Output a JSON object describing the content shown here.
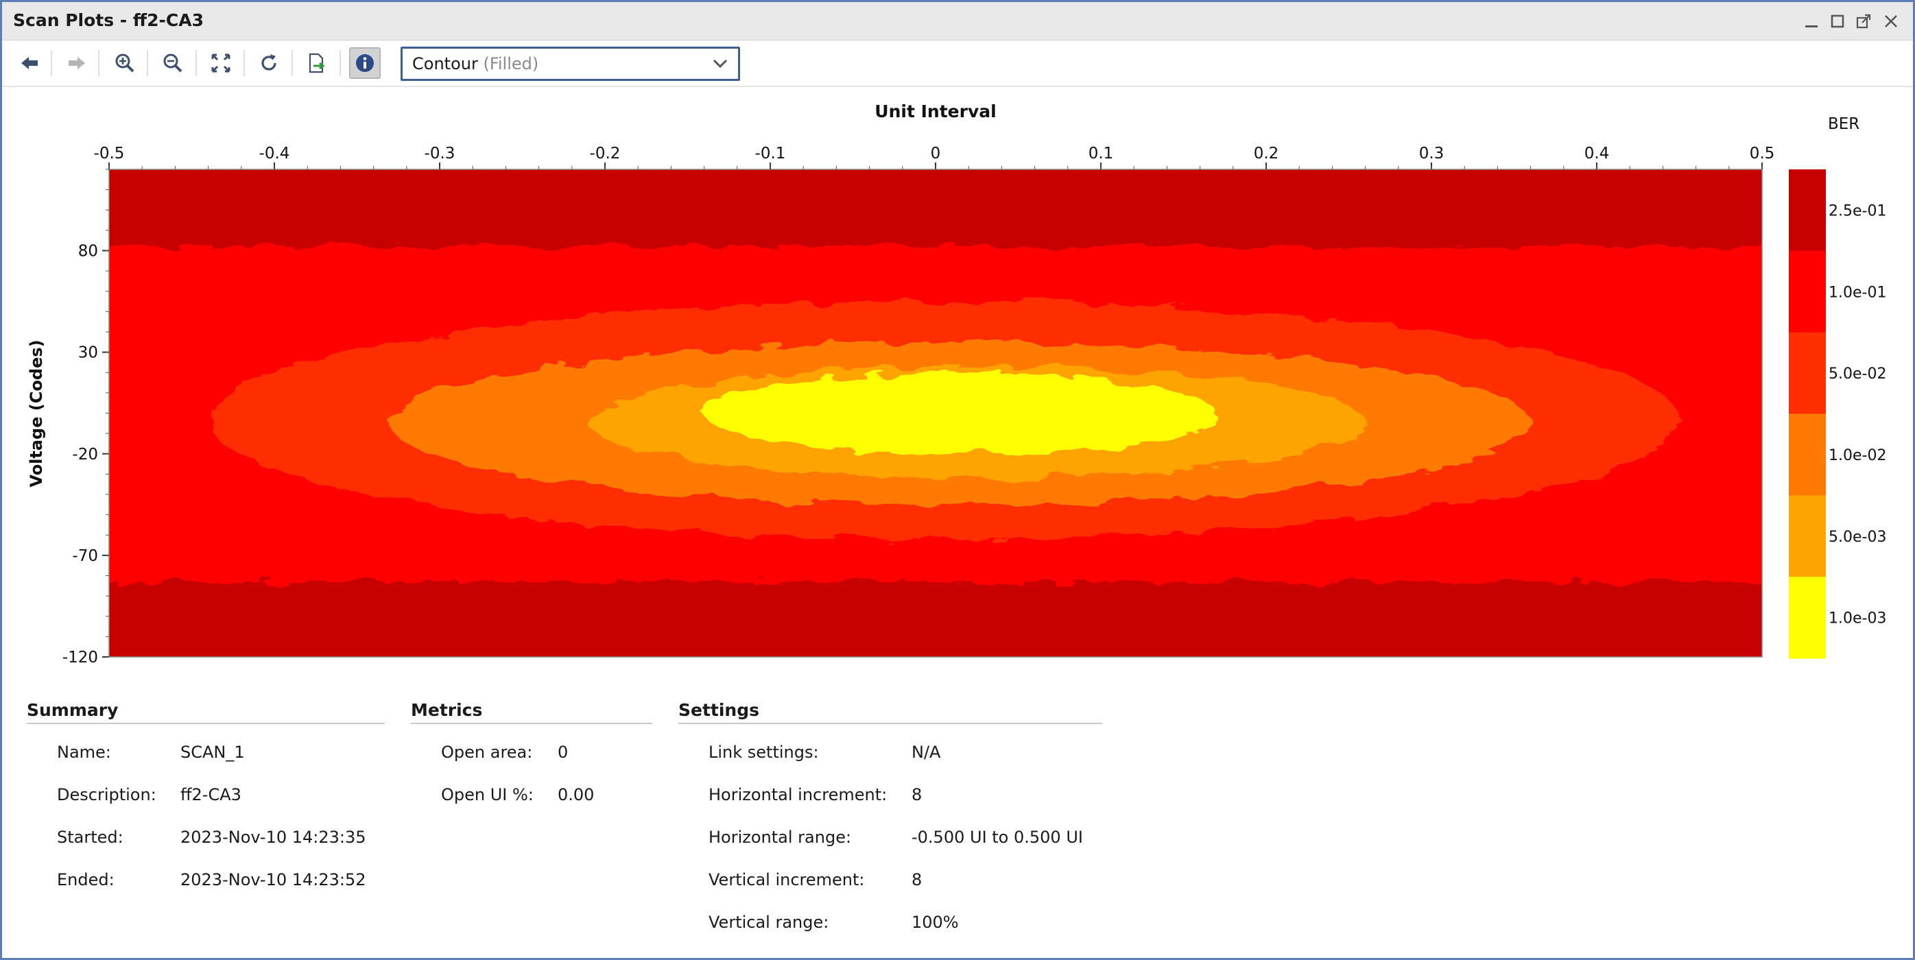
{
  "window": {
    "title": "Scan Plots - ff2-CA3"
  },
  "toolbar": {
    "buttons": [
      {
        "name": "back-button",
        "icon": "arrow-left-icon"
      },
      {
        "name": "forward-button",
        "icon": "arrow-right-icon"
      },
      {
        "name": "zoom-in-button",
        "icon": "zoom-in-icon"
      },
      {
        "name": "zoom-out-button",
        "icon": "zoom-out-icon"
      },
      {
        "name": "fit-button",
        "icon": "fit-to-window-icon"
      },
      {
        "name": "refresh-button",
        "icon": "refresh-icon"
      },
      {
        "name": "export-button",
        "icon": "export-icon"
      },
      {
        "name": "info-button",
        "icon": "info-icon"
      }
    ],
    "plot_type": {
      "value": "Contour",
      "suffix": "(Filled)"
    }
  },
  "chart_data": {
    "type": "heatmap",
    "title": "Unit Interval",
    "xlabel": "",
    "ylabel": "Voltage (Codes)",
    "xlim": [
      -0.5,
      0.5
    ],
    "ylim": [
      -120,
      120
    ],
    "x_ticks": [
      "-0.5",
      "-0.4",
      "-0.3",
      "-0.2",
      "-0.1",
      "0",
      "0.1",
      "0.2",
      "0.3",
      "0.4",
      "0.5"
    ],
    "y_ticks": [
      "80",
      "30",
      "-20",
      "-70",
      "-120"
    ],
    "colorbar": {
      "title": "BER",
      "levels": [
        {
          "label": "2.5e-01",
          "color": "#c80000"
        },
        {
          "label": "1.0e-01",
          "color": "#ff0000"
        },
        {
          "label": "5.0e-02",
          "color": "#ff2d00"
        },
        {
          "label": "1.0e-02",
          "color": "#ff7a00"
        },
        {
          "label": "5.0e-03",
          "color": "#ffa300"
        },
        {
          "label": "1.0e-03",
          "color": "#ffff00"
        }
      ]
    },
    "contours": [
      {
        "level": "2.5e-01",
        "color": "#c80000",
        "x_range": [
          -0.5,
          0.5
        ],
        "y_range": [
          -120,
          120
        ]
      },
      {
        "level": "1.0e-01",
        "color": "#ff0000",
        "x_range": [
          -0.5,
          0.5
        ],
        "y_range": [
          -83,
          82
        ]
      },
      {
        "level": "5.0e-02",
        "color": "#ff2d00",
        "x_range": [
          -0.44,
          0.45
        ],
        "y_range": [
          -62,
          55
        ]
      },
      {
        "level": "1.0e-02",
        "color": "#ff7a00",
        "x_range": [
          -0.33,
          0.36
        ],
        "y_range": [
          -45,
          35
        ]
      },
      {
        "level": "5.0e-03",
        "color": "#ffa300",
        "x_range": [
          -0.21,
          0.26
        ],
        "y_range": [
          -32,
          23
        ]
      },
      {
        "level": "1.0e-03",
        "color": "#ffff00",
        "x_range": [
          -0.14,
          0.17
        ],
        "y_range": [
          -20,
          20
        ]
      }
    ]
  },
  "summary": {
    "heading": "Summary",
    "rows": [
      {
        "label": "Name:",
        "value": "SCAN_1"
      },
      {
        "label": "Description:",
        "value": "ff2-CA3"
      },
      {
        "label": "Started:",
        "value": "2023-Nov-10 14:23:35"
      },
      {
        "label": "Ended:",
        "value": "2023-Nov-10 14:23:52"
      }
    ]
  },
  "metrics": {
    "heading": "Metrics",
    "rows": [
      {
        "label": "Open area:",
        "value": "0"
      },
      {
        "label": "Open UI %:",
        "value": "0.00"
      }
    ]
  },
  "settings": {
    "heading": "Settings",
    "rows": [
      {
        "label": "Link settings:",
        "value": "N/A"
      },
      {
        "label": "Horizontal increment:",
        "value": "8"
      },
      {
        "label": "Horizontal range:",
        "value": "-0.500 UI to 0.500 UI"
      },
      {
        "label": "Vertical increment:",
        "value": "8"
      },
      {
        "label": "Vertical range:",
        "value": "100%"
      }
    ]
  }
}
